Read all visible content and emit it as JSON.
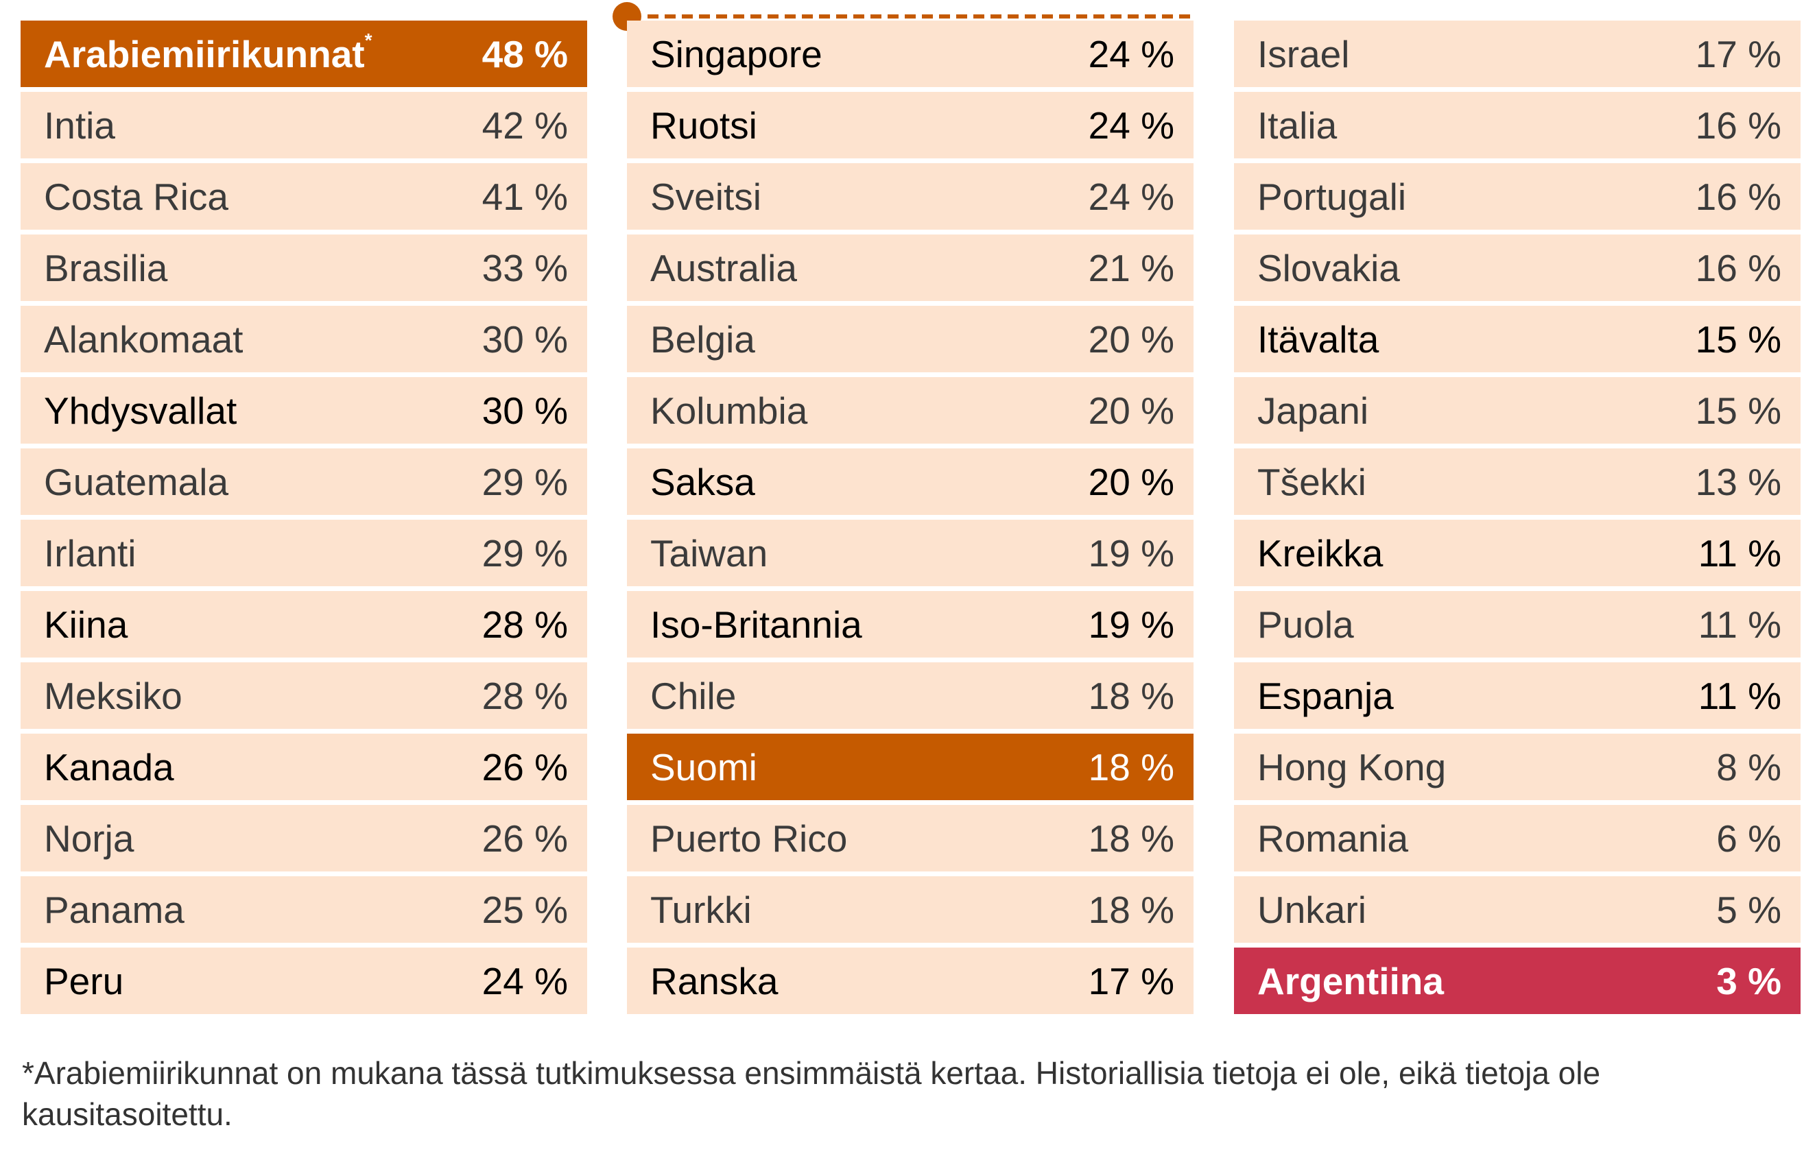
{
  "chart_data": {
    "type": "table",
    "unit": "%",
    "colors": {
      "highlight_top": "#c55a00",
      "highlight_finland": "#c55a00",
      "highlight_bottom": "#c9334d",
      "row_bg": "#fde3cf"
    },
    "columns": [
      [
        {
          "name": "Arabiemiirikunnat",
          "mark": "*",
          "value": "48 %",
          "style": "hl-orange"
        },
        {
          "name": "Intia",
          "value": "42 %"
        },
        {
          "name": "Costa Rica",
          "value": "41 %"
        },
        {
          "name": "Brasilia",
          "value": "33 %"
        },
        {
          "name": "Alankomaat",
          "value": "30 %"
        },
        {
          "name": "Yhdysvallat",
          "value": "30 %",
          "style": "dark"
        },
        {
          "name": "Guatemala",
          "value": "29 %"
        },
        {
          "name": "Irlanti",
          "value": "29 %"
        },
        {
          "name": "Kiina",
          "value": "28 %",
          "style": "dark"
        },
        {
          "name": "Meksiko",
          "value": "28 %"
        },
        {
          "name": "Kanada",
          "value": "26 %",
          "style": "dark"
        },
        {
          "name": "Norja",
          "value": "26 %"
        },
        {
          "name": "Panama",
          "value": "25 %"
        },
        {
          "name": "Peru",
          "value": "24 %",
          "style": "dark"
        }
      ],
      [
        {
          "name": "Singapore",
          "value": "24 %",
          "style": "dark"
        },
        {
          "name": "Ruotsi",
          "value": "24 %",
          "style": "dark"
        },
        {
          "name": "Sveitsi",
          "value": "24 %"
        },
        {
          "name": "Australia",
          "value": "21 %"
        },
        {
          "name": "Belgia",
          "value": "20 %"
        },
        {
          "name": "Kolumbia",
          "value": "20 %"
        },
        {
          "name": "Saksa",
          "value": "20 %",
          "style": "dark"
        },
        {
          "name": "Taiwan",
          "value": "19 %"
        },
        {
          "name": "Iso-Britannia",
          "value": "19 %",
          "style": "dark"
        },
        {
          "name": "Chile",
          "value": "18 %"
        },
        {
          "name": "Suomi",
          "value": "18 %",
          "style": "hl-finland"
        },
        {
          "name": "Puerto Rico",
          "value": "18 %"
        },
        {
          "name": "Turkki",
          "value": "18 %"
        },
        {
          "name": "Ranska",
          "value": "17 %",
          "style": "dark"
        }
      ],
      [
        {
          "name": "Israel",
          "value": "17 %"
        },
        {
          "name": "Italia",
          "value": "16 %"
        },
        {
          "name": "Portugali",
          "value": "16 %"
        },
        {
          "name": "Slovakia",
          "value": "16 %"
        },
        {
          "name": "Itävalta",
          "value": "15 %",
          "style": "dark"
        },
        {
          "name": "Japani",
          "value": "15 %"
        },
        {
          "name": "Tšekki",
          "value": "13 %"
        },
        {
          "name": "Kreikka",
          "value": "11 %",
          "style": "dark"
        },
        {
          "name": "Puola",
          "value": "11 %"
        },
        {
          "name": "Espanja",
          "value": "11 %",
          "style": "dark"
        },
        {
          "name": "Hong Kong",
          "value": "8 %"
        },
        {
          "name": "Romania",
          "value": "6 %"
        },
        {
          "name": "Unkari",
          "value": "5 %"
        },
        {
          "name": "Argentiina",
          "value": "3 %",
          "style": "hl-red"
        }
      ]
    ]
  },
  "footer": "*Arabiemiirikunnat on mukana tässä tutkimuksessa ensimmäistä kertaa. Historiallisia tietoja ei ole, eikä tietoja ole kausitasoitettu."
}
